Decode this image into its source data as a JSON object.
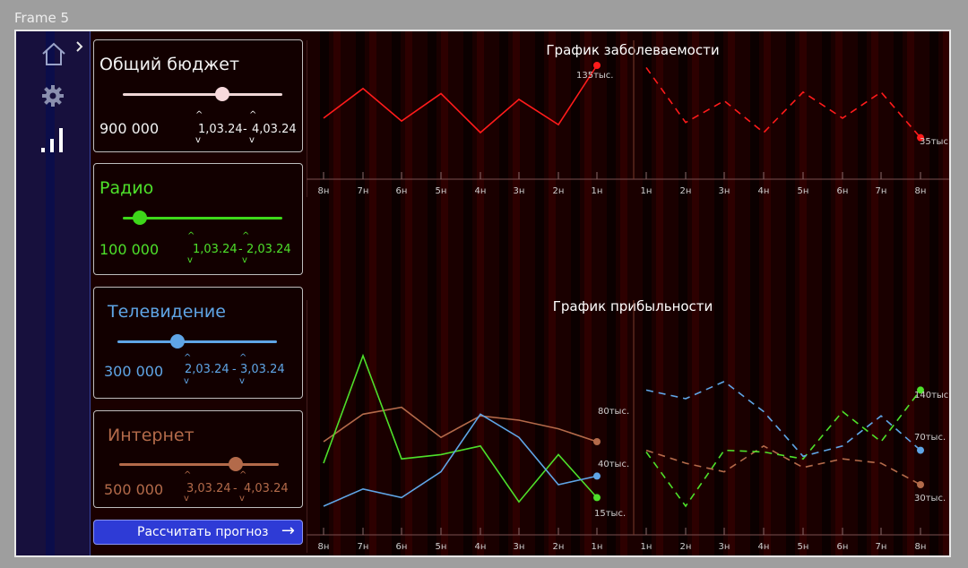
{
  "frame_label": "Frame 5",
  "sidebar": {
    "icons": [
      "home-icon",
      "gear-icon",
      "bar-chart-icon",
      "chevron-right-icon"
    ]
  },
  "panels": [
    {
      "title": "Общий бюджет",
      "amount": "900 000",
      "range_from": "1,03.24",
      "range_to": "4,03.24",
      "slider_level": 0.7,
      "color": "#f2f2f2",
      "track": "#f0d6d6",
      "knob": "#f7d9dc"
    },
    {
      "title": "Радио",
      "amount": "100 000",
      "range_from": "1,03.24",
      "range_to": "2,03.24",
      "slider_level": 0.1,
      "color": "#4ee02a",
      "track": "#3ed81a",
      "knob": "#3ed81a"
    },
    {
      "title": "Телевидение",
      "amount": "300 000",
      "range_from": "2,03.24",
      "range_to": "3,03.24",
      "slider_level": 0.38,
      "color": "#5fa5e6",
      "track": "#5fa5e6",
      "knob": "#5fa5e6"
    },
    {
      "title": "Интернет",
      "amount": "500 000",
      "range_from": "3,03.24",
      "range_to": "4,03.24",
      "slider_level": 0.73,
      "color": "#b36a4a",
      "track": "#b36a4a",
      "knob": "#b36a4a"
    }
  ],
  "range_sep": "-",
  "button": {
    "label": "Рассчитать прогноз",
    "arrow": "→"
  },
  "chart_data": [
    {
      "type": "line",
      "title": "График заболеваемости",
      "categories": [
        "8н",
        "7н",
        "6н",
        "5н",
        "4н",
        "3н",
        "2н",
        "1н",
        "1н",
        "2н",
        "3н",
        "4н",
        "5н",
        "6н",
        "7н",
        "8н"
      ],
      "series": [
        {
          "values": [
            62,
            103,
            58,
            96,
            42,
            88,
            53,
            135,
            132,
            56,
            86,
            42,
            98,
            62,
            98,
            35
          ],
          "color": "#ff1b1b"
        }
      ],
      "annotations": [
        "135тыс.",
        "35тыс."
      ]
    },
    {
      "type": "line",
      "title": "График прибыльности",
      "categories": [
        "8н",
        "7н",
        "6н",
        "5н",
        "4н",
        "3н",
        "2н",
        "1н",
        "1н",
        "2н",
        "3н",
        "4н",
        "5н",
        "6н",
        "7н",
        "8н"
      ],
      "series": [
        {
          "values": [
            80,
            112,
            120,
            85,
            110,
            105,
            95,
            80,
            70,
            55,
            45,
            75,
            50,
            60,
            55,
            30
          ],
          "color": "#b36a4a"
        },
        {
          "values": [
            55,
            180,
            60,
            65,
            75,
            10,
            65,
            15,
            68,
            5,
            70,
            68,
            60,
            115,
            80,
            140
          ],
          "color": "#4ee02a"
        },
        {
          "values": [
            5,
            25,
            15,
            45,
            112,
            85,
            30,
            40,
            140,
            130,
            150,
            115,
            63,
            75,
            110,
            70
          ],
          "color": "#5fa5e6"
        }
      ],
      "annotations": [
        "80тыс.",
        "40тыс.",
        "15тыс.",
        "140тыс.",
        "70тыс.",
        "30тыс."
      ]
    }
  ]
}
